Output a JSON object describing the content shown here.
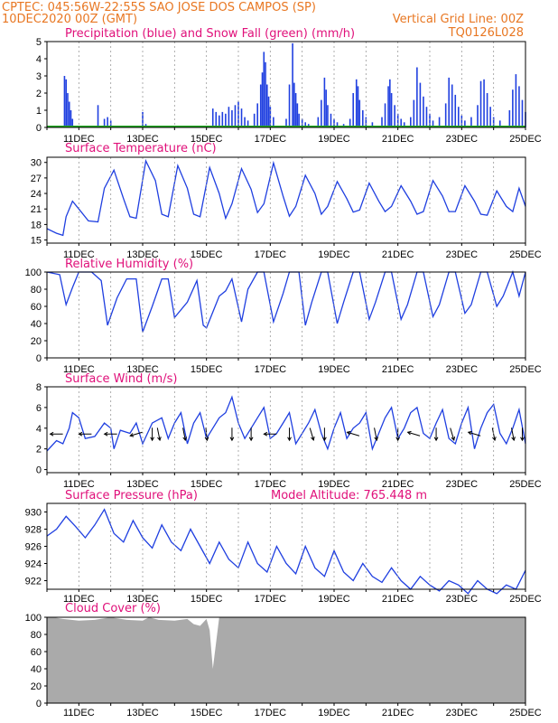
{
  "header": {
    "line1_left": "CPTEC:   045:56W-22:55S  SAO JOSE DOS CAMPOS (SP)",
    "line2_left": "10DEC2020 00Z (GMT)",
    "line2_right": "Vertical Grid Line: 00Z",
    "line3_right": "TQ0126L028"
  },
  "colors": {
    "header": "#e87722",
    "title": "#e0107a",
    "precip": "#1f3fe0",
    "snow": "#22aa22",
    "line": "#1f3fe0",
    "cloud": "#aaaaaa"
  },
  "x_axis": {
    "range_days": [
      0,
      15
    ],
    "tick_labels": [
      "11DEC",
      "13DEC",
      "15DEC",
      "17DEC",
      "19DEC",
      "21DEC",
      "23DEC",
      "25DEC"
    ],
    "tick_days": [
      1,
      3,
      5,
      7,
      9,
      11,
      13,
      15
    ]
  },
  "chart_data": [
    {
      "id": "precip",
      "type": "bar",
      "title": "Precipitation (blue) and Snow Fall (green) (mm/h)",
      "ylim": [
        0,
        5
      ],
      "yticks": [
        0,
        1,
        2,
        3,
        4,
        5
      ],
      "grid": true,
      "series": [
        {
          "name": "Precipitation",
          "x": [
            0.55,
            0.6,
            0.65,
            0.7,
            0.75,
            0.8,
            1.6,
            1.8,
            1.9,
            2.0,
            3.0,
            3.1,
            4.5,
            4.7,
            5.2,
            5.3,
            5.4,
            5.5,
            5.6,
            5.7,
            5.8,
            5.9,
            6.0,
            6.1,
            6.2,
            6.3,
            6.5,
            6.6,
            6.7,
            6.75,
            6.8,
            6.85,
            6.9,
            6.95,
            7.0,
            7.1,
            7.5,
            7.6,
            7.7,
            7.75,
            7.8,
            7.85,
            7.9,
            8.0,
            8.1,
            8.2,
            8.5,
            8.6,
            8.7,
            8.75,
            8.8,
            8.9,
            9.0,
            9.1,
            9.3,
            9.5,
            9.6,
            9.7,
            9.75,
            9.8,
            9.9,
            10.0,
            10.2,
            10.5,
            10.6,
            10.7,
            10.75,
            10.8,
            10.9,
            11.0,
            11.1,
            11.2,
            11.4,
            11.5,
            11.6,
            11.7,
            11.8,
            11.9,
            12.0,
            12.1,
            12.3,
            12.5,
            12.6,
            12.7,
            12.8,
            12.9,
            13.0,
            13.1,
            13.3,
            13.5,
            13.6,
            13.7,
            13.8,
            13.9,
            14.0,
            14.2,
            14.5,
            14.6,
            14.7,
            14.8,
            14.9,
            15.0
          ],
          "values": [
            3.0,
            2.8,
            2.0,
            1.5,
            1.0,
            0.5,
            1.3,
            0.5,
            0.6,
            0.4,
            0.9,
            0.2,
            0.1,
            0.1,
            1.1,
            0.9,
            0.7,
            0.9,
            0.8,
            1.2,
            1.0,
            1.3,
            1.5,
            1.1,
            0.6,
            0.4,
            0.8,
            1.4,
            2.5,
            3.2,
            4.4,
            3.8,
            2.5,
            1.8,
            1.2,
            0.6,
            0.5,
            2.5,
            4.9,
            2.6,
            2.0,
            1.4,
            0.8,
            0.5,
            0.3,
            0.2,
            0.6,
            1.6,
            2.9,
            2.2,
            1.3,
            0.8,
            0.5,
            0.3,
            0.2,
            0.5,
            2.0,
            2.8,
            2.4,
            1.6,
            1.0,
            0.6,
            0.3,
            0.6,
            1.4,
            2.4,
            2.8,
            2.0,
            1.3,
            0.8,
            0.5,
            0.3,
            0.6,
            1.6,
            3.5,
            2.6,
            1.8,
            1.2,
            0.8,
            0.4,
            0.6,
            1.4,
            2.9,
            2.5,
            1.9,
            1.2,
            0.7,
            0.4,
            0.6,
            1.3,
            2.7,
            2.8,
            2.0,
            1.2,
            0.6,
            0.4,
            1.0,
            2.2,
            3.1,
            2.4,
            1.6,
            0.9
          ]
        },
        {
          "name": "Snow Fall",
          "x": [
            0,
            15
          ],
          "values": [
            0,
            0
          ]
        }
      ]
    },
    {
      "id": "temp",
      "type": "line",
      "title": "Surface Temperature (nC)",
      "ylim": [
        14.4,
        31
      ],
      "yticks": [
        15,
        18,
        21,
        24,
        27,
        30
      ],
      "grid": true,
      "series": [
        {
          "x": [
            0,
            0.3,
            0.5,
            0.6,
            0.8,
            1.0,
            1.3,
            1.6,
            1.8,
            2.1,
            2.4,
            2.6,
            2.8,
            3.1,
            3.4,
            3.6,
            3.8,
            4.1,
            4.4,
            4.6,
            4.8,
            5.1,
            5.4,
            5.6,
            5.8,
            6.1,
            6.4,
            6.6,
            6.8,
            7.1,
            7.4,
            7.6,
            7.8,
            8.1,
            8.4,
            8.6,
            8.8,
            9.1,
            9.4,
            9.6,
            9.8,
            10.1,
            10.4,
            10.6,
            10.8,
            11.1,
            11.4,
            11.6,
            11.8,
            12.1,
            12.4,
            12.6,
            12.8,
            13.1,
            13.4,
            13.6,
            13.8,
            14.1,
            14.4,
            14.6,
            14.8,
            15.0
          ],
          "values": [
            17.2,
            16.3,
            15.9,
            19.5,
            22.5,
            21.0,
            18.7,
            18.5,
            25.0,
            28.5,
            23.0,
            19.5,
            19.2,
            30.3,
            26.5,
            20.0,
            19.5,
            29.4,
            25.0,
            20.0,
            19.5,
            29.0,
            24.0,
            19.2,
            22.0,
            28.8,
            24.8,
            20.3,
            22.0,
            29.9,
            23.5,
            19.6,
            21.5,
            27.5,
            24.0,
            20.0,
            21.5,
            26.3,
            23.0,
            20.4,
            20.8,
            26.0,
            22.5,
            20.5,
            21.5,
            25.5,
            22.5,
            20.0,
            20.5,
            26.5,
            23.5,
            20.5,
            20.5,
            25.5,
            22.5,
            20.0,
            19.8,
            24.5,
            21.5,
            20.5,
            25.0,
            21.5
          ]
        }
      ]
    },
    {
      "id": "rh",
      "type": "line",
      "title": "Relative Humidity (%)",
      "ylim": [
        0,
        100
      ],
      "yticks": [
        0,
        20,
        40,
        60,
        80,
        100
      ],
      "grid": true,
      "series": [
        {
          "x": [
            0,
            0.4,
            0.6,
            0.8,
            1.0,
            1.4,
            1.7,
            1.9,
            2.2,
            2.5,
            2.8,
            3.0,
            3.3,
            3.6,
            3.8,
            4.0,
            4.4,
            4.7,
            4.9,
            5.0,
            5.4,
            5.6,
            5.8,
            6.1,
            6.3,
            6.6,
            6.8,
            7.1,
            7.4,
            7.6,
            7.9,
            8.1,
            8.3,
            8.6,
            8.8,
            9.1,
            9.3,
            9.6,
            9.8,
            10.1,
            10.3,
            10.6,
            10.8,
            11.1,
            11.3,
            11.6,
            11.8,
            12.1,
            12.3,
            12.6,
            12.8,
            13.1,
            13.3,
            13.6,
            13.8,
            14.1,
            14.3,
            14.6,
            14.8,
            15.0
          ],
          "values": [
            100,
            97,
            62,
            82,
            100,
            100,
            90,
            38,
            70,
            92,
            92,
            30,
            60,
            92,
            92,
            47,
            65,
            90,
            38,
            35,
            72,
            78,
            92,
            42,
            80,
            100,
            100,
            42,
            75,
            100,
            100,
            38,
            65,
            100,
            100,
            40,
            65,
            100,
            100,
            45,
            65,
            100,
            100,
            45,
            62,
            100,
            100,
            48,
            62,
            100,
            100,
            52,
            62,
            100,
            100,
            60,
            72,
            100,
            72,
            100
          ]
        }
      ]
    },
    {
      "id": "wind",
      "type": "line",
      "title": "Surface Wind (m/s)",
      "ylim": [
        -0.3,
        8
      ],
      "yticks": [
        0,
        2,
        4,
        6,
        8
      ],
      "grid": true,
      "series": [
        {
          "x": [
            0,
            0.3,
            0.5,
            0.7,
            0.8,
            1.0,
            1.2,
            1.5,
            1.8,
            2.0,
            2.1,
            2.3,
            2.6,
            2.8,
            3.0,
            3.3,
            3.6,
            3.8,
            4.0,
            4.2,
            4.4,
            4.6,
            4.8,
            5.0,
            5.2,
            5.4,
            5.6,
            5.8,
            6.0,
            6.2,
            6.4,
            6.6,
            6.8,
            7.0,
            7.2,
            7.4,
            7.6,
            7.8,
            8.0,
            8.2,
            8.4,
            8.6,
            8.8,
            9.0,
            9.2,
            9.4,
            9.6,
            9.8,
            10.0,
            10.2,
            10.4,
            10.6,
            10.8,
            11.0,
            11.2,
            11.4,
            11.6,
            11.8,
            12.0,
            12.2,
            12.4,
            12.6,
            12.8,
            13.0,
            13.2,
            13.4,
            13.6,
            13.8,
            14.0,
            14.2,
            14.4,
            14.6,
            14.8,
            15.0
          ],
          "values": [
            1.8,
            2.8,
            2.5,
            4.0,
            5.5,
            5.0,
            3.0,
            3.2,
            4.5,
            4.0,
            2.0,
            3.8,
            3.5,
            4.5,
            2.5,
            4.5,
            5.0,
            3.0,
            4.5,
            5.5,
            2.5,
            4.5,
            5.5,
            3.0,
            4.0,
            5.0,
            5.5,
            7.0,
            4.5,
            3.0,
            4.0,
            5.0,
            6.0,
            3.0,
            3.5,
            4.5,
            5.5,
            2.5,
            3.5,
            4.5,
            5.8,
            3.5,
            2.0,
            4.0,
            5.5,
            3.0,
            4.0,
            4.5,
            5.5,
            2.0,
            3.5,
            5.0,
            6.0,
            3.0,
            4.0,
            5.5,
            6.0,
            3.5,
            3.0,
            4.5,
            5.8,
            3.0,
            2.5,
            4.5,
            6.0,
            2.0,
            4.0,
            5.5,
            6.3,
            3.5,
            2.5,
            4.0,
            5.8,
            2.5
          ]
        }
      ],
      "arrows": {
        "x": [
          0.3,
          1.2,
          2.0,
          2.8,
          3.3,
          3.5,
          4.3,
          5.0,
          5.8,
          6.4,
          7.0,
          7.6,
          8.3,
          8.7,
          9.6,
          10.3,
          11.0,
          11.5,
          12.2,
          12.7,
          13.4,
          14.0,
          14.6,
          14.9
        ],
        "u": [
          -1,
          -1,
          -1,
          -1,
          0,
          0.2,
          0.2,
          0.1,
          0,
          0,
          -1,
          0,
          0.3,
          0,
          -1,
          0.2,
          0,
          -1,
          0,
          0.3,
          -1,
          0.2,
          0.2,
          0
        ],
        "v": [
          0,
          0,
          0,
          -0.3,
          -1,
          -1,
          -1,
          -1,
          -1,
          -1,
          0,
          -1,
          -1,
          -1,
          0.3,
          -1,
          -1,
          0.3,
          -1,
          -1,
          0.3,
          -1,
          -1,
          -1
        ]
      }
    },
    {
      "id": "pressure",
      "type": "line",
      "title": "Surface Pressure (hPa)",
      "annotation": "Model Altitude: 765.448 m",
      "ylim": [
        921,
        931
      ],
      "yticks": [
        922,
        924,
        926,
        928,
        930
      ],
      "grid": true,
      "series": [
        {
          "x": [
            0,
            0.3,
            0.6,
            0.9,
            1.2,
            1.5,
            1.8,
            2.1,
            2.4,
            2.7,
            3.0,
            3.3,
            3.6,
            3.9,
            4.2,
            4.5,
            4.8,
            5.1,
            5.4,
            5.7,
            6.0,
            6.3,
            6.6,
            6.9,
            7.2,
            7.5,
            7.8,
            8.1,
            8.4,
            8.7,
            9.0,
            9.3,
            9.6,
            9.9,
            10.2,
            10.5,
            10.8,
            11.1,
            11.4,
            11.7,
            12.0,
            12.3,
            12.6,
            12.9,
            13.2,
            13.5,
            13.8,
            14.1,
            14.4,
            14.7,
            15.0
          ],
          "values": [
            927.2,
            928.0,
            929.5,
            928.3,
            927.0,
            928.5,
            930.3,
            927.5,
            926.5,
            929.0,
            927.0,
            925.8,
            928.5,
            926.5,
            925.5,
            928.0,
            926.0,
            924.0,
            926.5,
            924.5,
            923.5,
            926.5,
            924.0,
            923.0,
            926.0,
            924.0,
            922.8,
            926.0,
            923.5,
            922.5,
            925.5,
            923.0,
            922.0,
            924.0,
            922.5,
            921.8,
            923.5,
            922.0,
            921.0,
            922.5,
            921.5,
            920.8,
            922.0,
            921.5,
            920.5,
            922.0,
            921.0,
            920.5,
            921.5,
            921.0,
            923.2
          ]
        }
      ]
    },
    {
      "id": "cloud",
      "type": "area",
      "title": "Cloud Cover (%)",
      "ylim": [
        0,
        100
      ],
      "yticks": [
        0,
        20,
        40,
        60,
        80,
        100
      ],
      "grid": false,
      "series": [
        {
          "x": [
            0,
            0.2,
            0.5,
            1.0,
            1.5,
            2.0,
            2.5,
            3.0,
            3.2,
            3.5,
            4.0,
            4.4,
            4.6,
            4.8,
            5.0,
            5.1,
            5.2,
            5.4,
            5.8,
            6.2,
            6.6,
            7.0,
            7.5,
            8.0,
            9.0,
            10.0,
            11.0,
            12.0,
            13.0,
            14.0,
            15.0
          ],
          "values": [
            100,
            100,
            98,
            96,
            97,
            100,
            97,
            96,
            100,
            97,
            96,
            98,
            92,
            90,
            98,
            85,
            40,
            100,
            100,
            100,
            100,
            100,
            100,
            100,
            100,
            100,
            100,
            100,
            100,
            100,
            100
          ]
        }
      ]
    }
  ]
}
